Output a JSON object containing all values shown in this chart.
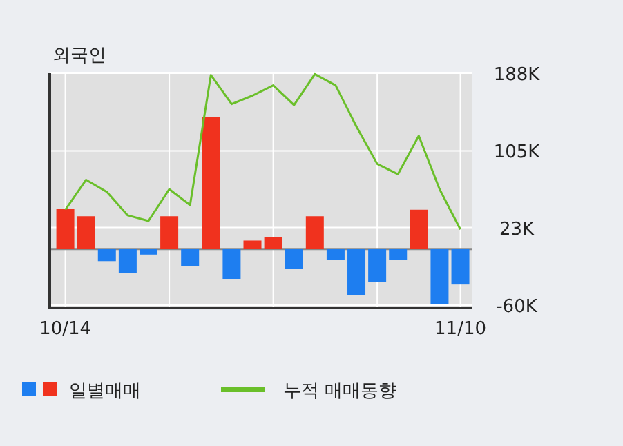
{
  "chart_data": {
    "type": "bar",
    "title": "외국인",
    "categories": [
      "10/14",
      null,
      null,
      null,
      null,
      null,
      null,
      null,
      null,
      null,
      null,
      null,
      null,
      null,
      null,
      null,
      null,
      null,
      null,
      "11/10"
    ],
    "series": [
      {
        "name": "일별매매",
        "colors": [
          "#f0321e",
          "#f0321e",
          "#1e7ef0",
          "#1e7ef0",
          "#1e7ef0",
          "#f0321e",
          "#1e7ef0",
          "#f0321e",
          "#1e7ef0",
          "#f0321e",
          "#f0321e",
          "#1e7ef0",
          "#f0321e",
          "#1e7ef0",
          "#1e7ef0",
          "#1e7ef0",
          "#1e7ef0",
          "#f0321e",
          "#1e7ef0",
          "#1e7ef0"
        ],
        "values": [
          43,
          35,
          -13,
          -26,
          -6,
          35,
          -18,
          141,
          -32,
          9,
          13,
          -21,
          35,
          -12,
          -49,
          -35,
          -12,
          42,
          -59,
          -38
        ]
      },
      {
        "type": "line",
        "name": "누적 매매동향",
        "color": "#6abf2a",
        "values": [
          42,
          74,
          61,
          36,
          30,
          64,
          47,
          186,
          155,
          164,
          175,
          154,
          187,
          175,
          131,
          91,
          80,
          121,
          64,
          21
        ]
      }
    ],
    "ylim": [
      -63,
      188
    ],
    "yticks": [
      {
        "value": 188,
        "label": "188K"
      },
      {
        "value": 105,
        "label": "105K"
      },
      {
        "value": 23,
        "label": "23K"
      },
      {
        "value": -60,
        "label": "-60K"
      }
    ],
    "grid": true,
    "legend": "bottom"
  }
}
